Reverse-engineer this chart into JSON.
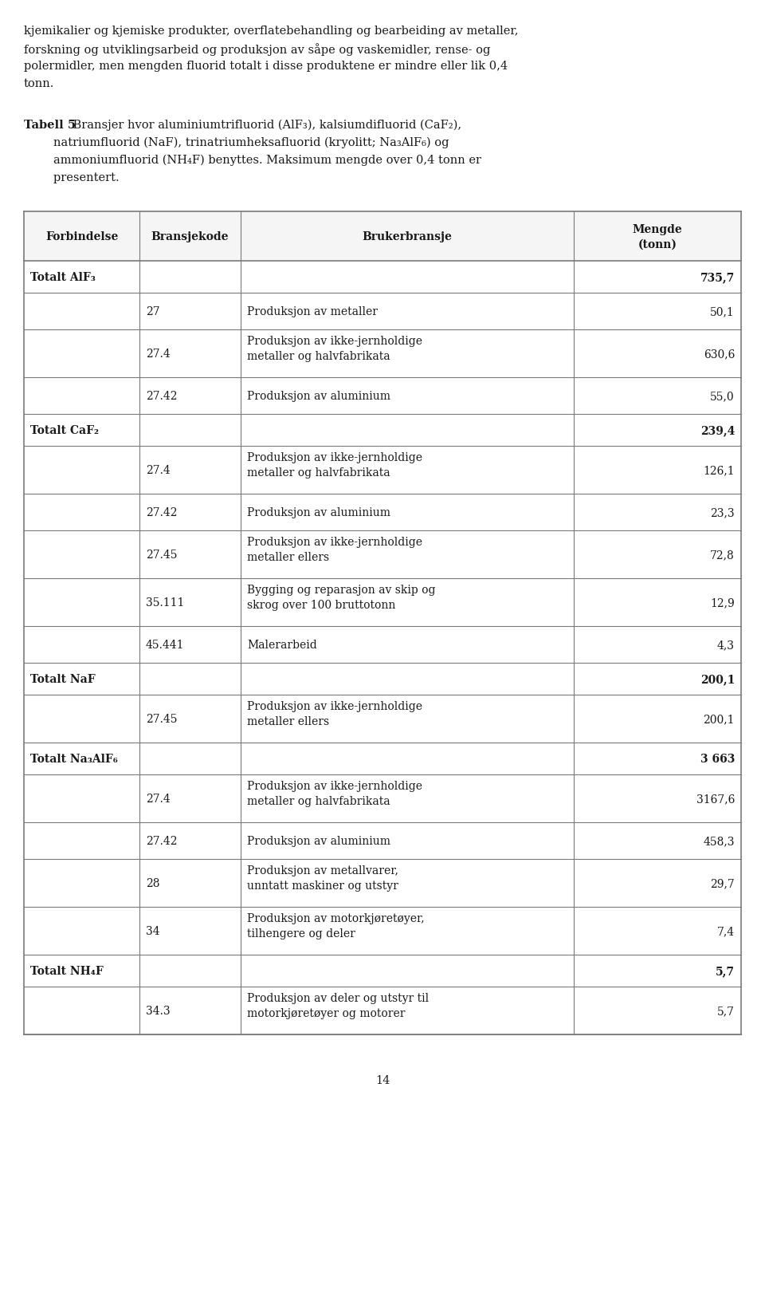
{
  "intro_text_lines": [
    "kjemikalier og kjemiske produkter, overflatebehandling og bearbeiding av metaller,",
    "forskning og utviklingsarbeid og produksjon av såpe og vaskemidler, rense- og",
    "polermidler, men mengden fluorid totalt i disse produktene er mindre eller lik 0,4",
    "tonn."
  ],
  "caption_bold": "Tabell 5",
  "caption_normal": " Bransjer hvor aluminiumtrifluorid (AlF₃), kalsiumdifluorid (CaF₂),",
  "caption_lines": [
    "        natriumfluorid (NaF), trinatriumheksafluorid (kryolitt; Na₃AlF₆) og",
    "        ammoniumfluorid (NH₄F) benyttes. Maksimum mengde over 0,4 tonn er",
    "        presentert."
  ],
  "headers": [
    "Forbindelse",
    "Bransjekode",
    "Brukerbransje",
    "Mengde\n(tonn)"
  ],
  "rows": [
    {
      "type": "total",
      "col0": "Totalt AlF₃",
      "col1": "",
      "col2": "",
      "col3": "735,7"
    },
    {
      "type": "data",
      "col0": "",
      "col1": "27",
      "col2": "Produksjon av metaller",
      "col3": "50,1"
    },
    {
      "type": "data",
      "col0": "",
      "col1": "27.4",
      "col2": "Produksjon av ikke-jernholdige\nmetaller og halvfabrikata",
      "col3": "630,6"
    },
    {
      "type": "data",
      "col0": "",
      "col1": "27.42",
      "col2": "Produksjon av aluminium",
      "col3": "55,0"
    },
    {
      "type": "total",
      "col0": "Totalt CaF₂",
      "col1": "",
      "col2": "",
      "col3": "239,4"
    },
    {
      "type": "data",
      "col0": "",
      "col1": "27.4",
      "col2": "Produksjon av ikke-jernholdige\nmetaller og halvfabrikata",
      "col3": "126,1"
    },
    {
      "type": "data",
      "col0": "",
      "col1": "27.42",
      "col2": "Produksjon av aluminium",
      "col3": "23,3"
    },
    {
      "type": "data",
      "col0": "",
      "col1": "27.45",
      "col2": "Produksjon av ikke-jernholdige\nmetaller ellers",
      "col3": "72,8"
    },
    {
      "type": "data",
      "col0": "",
      "col1": "35.111",
      "col2": "Bygging og reparasjon av skip og\nskrog over 100 bruttotonn",
      "col3": "12,9"
    },
    {
      "type": "data",
      "col0": "",
      "col1": "45.441",
      "col2": "Malerarbeid",
      "col3": "4,3"
    },
    {
      "type": "total",
      "col0": "Totalt NaF",
      "col1": "",
      "col2": "",
      "col3": "200,1"
    },
    {
      "type": "data",
      "col0": "",
      "col1": "27.45",
      "col2": "Produksjon av ikke-jernholdige\nmetaller ellers",
      "col3": "200,1"
    },
    {
      "type": "total",
      "col0": "Totalt Na₃AlF₆",
      "col1": "",
      "col2": "",
      "col3": "3 663"
    },
    {
      "type": "data",
      "col0": "",
      "col1": "27.4",
      "col2": "Produksjon av ikke-jernholdige\nmetaller og halvfabrikata",
      "col3": "3167,6"
    },
    {
      "type": "data",
      "col0": "",
      "col1": "27.42",
      "col2": "Produksjon av aluminium",
      "col3": "458,3"
    },
    {
      "type": "data",
      "col0": "",
      "col1": "28",
      "col2": "Produksjon av metallvarer,\nunntatt maskiner og utstyr",
      "col3": "29,7"
    },
    {
      "type": "data",
      "col0": "",
      "col1": "34",
      "col2": "Produksjon av motorkjøretøyer,\ntilhengere og deler",
      "col3": "7,4"
    },
    {
      "type": "total",
      "col0": "Totalt NH₄F",
      "col1": "",
      "col2": "",
      "col3": "5,7"
    },
    {
      "type": "data",
      "col0": "",
      "col1": "34.3",
      "col2": "Produksjon av deler og utstyr til\nmotorkjøretøyer og motorer",
      "col3": "5,7"
    }
  ],
  "page_number": "14",
  "bg_color": "#ffffff",
  "text_color": "#1a1a1a",
  "border_color": "#7a7a7a",
  "font_size": 10.5,
  "table_font_size": 10.0
}
